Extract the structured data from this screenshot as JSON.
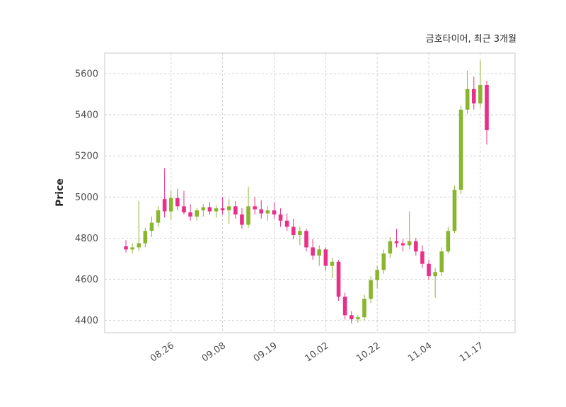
{
  "chart_data": {
    "type": "candlestick",
    "title": "금호타이어, 최근 3개월",
    "ylabel": "Price",
    "xlabel": "",
    "ylim": [
      4340,
      5700
    ],
    "yticks": [
      4400,
      4600,
      4800,
      5000,
      5200,
      5400,
      5600
    ],
    "xtick_labels": [
      "08.26",
      "09.08",
      "09.19",
      "10.02",
      "10.22",
      "11.04",
      "11.17"
    ],
    "xtick_indices": [
      7,
      15,
      23,
      31,
      39,
      47,
      55
    ],
    "grid": "dashed",
    "legend": "none",
    "colors": {
      "up": "#8ab52f",
      "down": "#e8308a",
      "grid": "#cccccc",
      "border": "#c8c8c8",
      "tick": "#4d4d4d",
      "plot_bg": "#ffffff"
    },
    "candles": [
      [
        4760,
        4790,
        4730,
        4745
      ],
      [
        4745,
        4775,
        4725,
        4755
      ],
      [
        4755,
        4980,
        4740,
        4775
      ],
      [
        4775,
        4850,
        4755,
        4835
      ],
      [
        4835,
        4905,
        4805,
        4875
      ],
      [
        4875,
        4955,
        4855,
        4935
      ],
      [
        4990,
        5140,
        4900,
        4930
      ],
      [
        4930,
        5030,
        4890,
        4995
      ],
      [
        4995,
        5040,
        4935,
        4955
      ],
      [
        4955,
        5030,
        4915,
        4925
      ],
      [
        4925,
        4965,
        4885,
        4905
      ],
      [
        4905,
        4945,
        4885,
        4935
      ],
      [
        4935,
        4965,
        4905,
        4950
      ],
      [
        4950,
        4975,
        4915,
        4930
      ],
      [
        4930,
        4960,
        4900,
        4945
      ],
      [
        4945,
        5000,
        4915,
        4935
      ],
      [
        4935,
        4990,
        4870,
        4955
      ],
      [
        4955,
        4980,
        4895,
        4915
      ],
      [
        4915,
        4945,
        4845,
        4865
      ],
      [
        4865,
        5050,
        4850,
        4955
      ],
      [
        4955,
        5000,
        4915,
        4940
      ],
      [
        4940,
        4985,
        4895,
        4920
      ],
      [
        4920,
        4955,
        4885,
        4935
      ],
      [
        4935,
        4975,
        4895,
        4915
      ],
      [
        4915,
        4945,
        4855,
        4885
      ],
      [
        4885,
        4920,
        4835,
        4855
      ],
      [
        4855,
        4895,
        4795,
        4815
      ],
      [
        4815,
        4855,
        4765,
        4835
      ],
      [
        4835,
        4845,
        4735,
        4755
      ],
      [
        4755,
        4795,
        4695,
        4715
      ],
      [
        4715,
        4765,
        4665,
        4745
      ],
      [
        4745,
        4755,
        4645,
        4665
      ],
      [
        4665,
        4705,
        4605,
        4685
      ],
      [
        4685,
        4695,
        4495,
        4515
      ],
      [
        4515,
        4535,
        4405,
        4425
      ],
      [
        4425,
        4445,
        4385,
        4405
      ],
      [
        4405,
        4425,
        4390,
        4415
      ],
      [
        4415,
        4525,
        4400,
        4505
      ],
      [
        4505,
        4615,
        4485,
        4595
      ],
      [
        4595,
        4665,
        4555,
        4645
      ],
      [
        4645,
        4745,
        4625,
        4725
      ],
      [
        4725,
        4805,
        4705,
        4785
      ],
      [
        4785,
        4845,
        4755,
        4775
      ],
      [
        4775,
        4795,
        4735,
        4765
      ],
      [
        4765,
        4930,
        4745,
        4785
      ],
      [
        4785,
        4800,
        4715,
        4735
      ],
      [
        4735,
        4765,
        4655,
        4675
      ],
      [
        4675,
        4695,
        4595,
        4615
      ],
      [
        4615,
        4655,
        4510,
        4635
      ],
      [
        4635,
        4755,
        4615,
        4735
      ],
      [
        4735,
        4855,
        4725,
        4835
      ],
      [
        4835,
        5055,
        4825,
        5035
      ],
      [
        5035,
        5445,
        5015,
        5425
      ],
      [
        5425,
        5615,
        5405,
        5525
      ],
      [
        5525,
        5585,
        5425,
        5455
      ],
      [
        5455,
        5665,
        5435,
        5545
      ],
      [
        5545,
        5565,
        5255,
        5325
      ]
    ]
  }
}
